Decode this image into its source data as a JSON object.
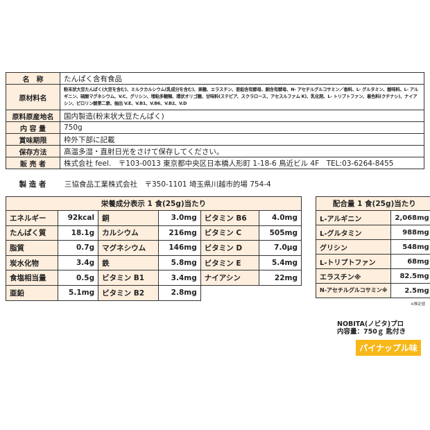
{
  "info": [
    {
      "label": "名　称",
      "value": "たんぱく含有食品"
    },
    {
      "label": "原材料名",
      "value": "粉末状大豆たんぱく(大豆を含む)、ミルクカルシウム(乳成分を含む)、果糖、エラスチン、亜鉛含有酵母、銅含有酵母、N- アセチルグルコサミン／香料、L- グルタミン、酸味料、L- アルギニン、硫酸マグネシウム、V.C、グリシン、増粘多糖類、環状オリゴ糖、甘味料(ステビア、スクラロース、アセスルファム K)、乳化剤、L- トリプトファン、着色料(クチナシ)、ナイアシン、ピロリン酸第二鉄、抽出 V.E、V.B1、V.B6、V.B2、V.D"
    },
    {
      "label": "原料原産地名",
      "value": "国内製造(粉末状大豆たんぱく)"
    },
    {
      "label": "内 容 量",
      "value": "750g"
    },
    {
      "label": "賞味期限",
      "value": "枠外下部に記載"
    },
    {
      "label": "保存方法",
      "value": "高温多湿・直射日光をさけて保存してください。"
    },
    {
      "label": "販 売 者",
      "value": "株式会社 feel.　〒103-0013 東京都中央区日本橋人形町 1-18-6 鳥近ビル 4F　TEL:03-6264-8455"
    }
  ],
  "manufacturer": {
    "label": "製 造 者",
    "value": "三協食品工業株式会社　〒350-1101 埼玉県川越市的場 754-4"
  },
  "nutrition": {
    "title": "栄養成分表示 1 食(25g)当たり",
    "rows": [
      [
        [
          "エネルギー",
          "92kcal"
        ],
        [
          "銅",
          "3.0mg"
        ],
        [
          "ビタミン B6",
          "4.0mg"
        ]
      ],
      [
        [
          "たんぱく質",
          "18.1g"
        ],
        [
          "カルシウム",
          "216mg"
        ],
        [
          "ビタミン C",
          "505mg"
        ]
      ],
      [
        [
          "脂質",
          "0.7g"
        ],
        [
          "マグネシウム",
          "146mg"
        ],
        [
          "ビタミン D",
          "7.0μg"
        ]
      ],
      [
        [
          "炭水化物",
          "3.4g"
        ],
        [
          "鉄",
          "5.8mg"
        ],
        [
          "ビタミン E",
          "5.4mg"
        ]
      ],
      [
        [
          "食塩相当量",
          "0.5g"
        ],
        [
          "ビタミン B1",
          "3.4mg"
        ],
        [
          "ナイアシン",
          "22mg"
        ]
      ],
      [
        [
          "亜鉛",
          "5.1mg"
        ],
        [
          "ビタミン B2",
          "2.8mg"
        ]
      ]
    ]
  },
  "mix": {
    "title": "配合量 1 食(25g)当たり",
    "rows": [
      [
        "L-アルギニン",
        "2,068mg"
      ],
      [
        "L-グルタミン",
        "988mg"
      ],
      [
        "グリシン",
        "548mg"
      ],
      [
        "L-トリプトファン",
        "68mg"
      ],
      [
        "エラスチン※",
        "82.5mg"
      ],
      [
        "N-アセチルグルコサミン※",
        "2.5mg"
      ]
    ],
    "note": "※推定値"
  },
  "product": {
    "name": "NOBITA(ノビタ)プロ",
    "content": "内容量：750ｇ 匙付き",
    "flavor": "パイナップル味",
    "flavor_color": "#f8b718"
  }
}
